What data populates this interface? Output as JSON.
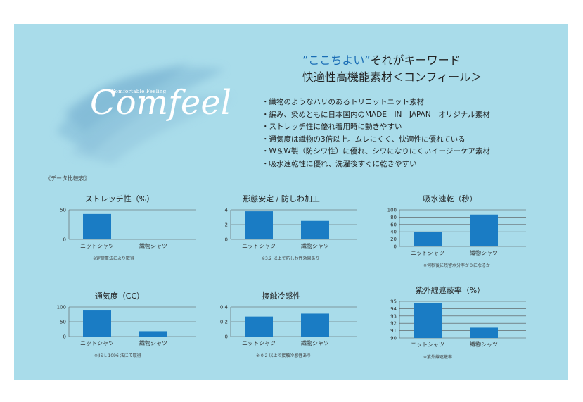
{
  "logo": {
    "tagline": "Comfortable Feeling",
    "name": "Comfeel"
  },
  "headline": {
    "quote": "”ここちよい”",
    "line1_rest": "それがキーワード",
    "line2": "快適性高機能素材＜コンフィール＞"
  },
  "features": [
    "・織物のようなハリのあるトリコットニット素材",
    "・編み、染めともに日本国内のMADE　IN　JAPAN　オリジナル素材",
    "・ストレッチ性に優れ着用時に動きやすい",
    "・通気度は織物の3倍以上。ムレにくく、快適性に優れている",
    "・W＆W製（防シワ性）に優れ、シワになりにくいイージーケア素材",
    "・吸水速乾性に優れ、洗濯後すぐに乾きやすい"
  ],
  "compare_label": "《データ比較表》",
  "colors": {
    "panel": "#a9dcea",
    "bar": "#1a7cc4",
    "accent": "#1a6db5"
  },
  "chart_data": [
    {
      "type": "bar",
      "title": "ストレッチ性（%）",
      "categories": [
        "ニットシャツ",
        "織物シャツ"
      ],
      "values": [
        43,
        0
      ],
      "ylim": [
        0,
        50
      ],
      "yticks": [
        "50",
        "0"
      ],
      "tick_values": [
        50,
        0
      ],
      "note": "※定荷重法により取得"
    },
    {
      "type": "bar",
      "title": "形態安定 / 防しわ加工",
      "categories": [
        "ニットシャツ",
        "織物シャツ"
      ],
      "values": [
        3.8,
        2.5
      ],
      "ylim": [
        0,
        4
      ],
      "yticks": [
        "4",
        "2",
        "0"
      ],
      "tick_values": [
        4,
        2,
        0
      ],
      "note": "※3.2 以上で防しわ性効果あり"
    },
    {
      "type": "bar",
      "title": "吸水速乾（秒）",
      "categories": [
        "ニットシャツ",
        "織物シャツ"
      ],
      "values": [
        40,
        87
      ],
      "ylim": [
        0,
        100
      ],
      "yticks": [
        "100",
        "80",
        "60",
        "40",
        "20",
        "0"
      ],
      "tick_values": [
        100,
        80,
        60,
        40,
        20,
        0
      ],
      "note": "※何秒後に残留水分率が０になるか"
    },
    {
      "type": "bar",
      "title": "通気度（CC）",
      "categories": [
        "ニットシャツ",
        "織物シャツ"
      ],
      "values": [
        88,
        18
      ],
      "ylim": [
        0,
        100
      ],
      "yticks": [
        "100",
        "50",
        "0"
      ],
      "tick_values": [
        100,
        50,
        0
      ],
      "note": "※JIS L 1096 法にて取得"
    },
    {
      "type": "bar",
      "title": "接触冷感性",
      "categories": [
        "ニットシャツ",
        "織物シャツ"
      ],
      "values": [
        0.27,
        0.31
      ],
      "ylim": [
        0,
        0.4
      ],
      "yticks": [
        "0.4",
        "0.2",
        "0"
      ],
      "tick_values": [
        0.4,
        0.2,
        0
      ],
      "note": "※ 0.2 以上で接触冷感性あり"
    },
    {
      "type": "bar",
      "title": "紫外線遮蔽率（%）",
      "categories": [
        "ニットシャツ",
        "織物シャツ"
      ],
      "values": [
        94.8,
        91.4
      ],
      "ylim": [
        90,
        95
      ],
      "yticks": [
        "95",
        "94",
        "93",
        "92",
        "91",
        "90"
      ],
      "tick_values": [
        95,
        94,
        93,
        92,
        91,
        90
      ],
      "note": "※紫外線遮蔽率"
    }
  ]
}
